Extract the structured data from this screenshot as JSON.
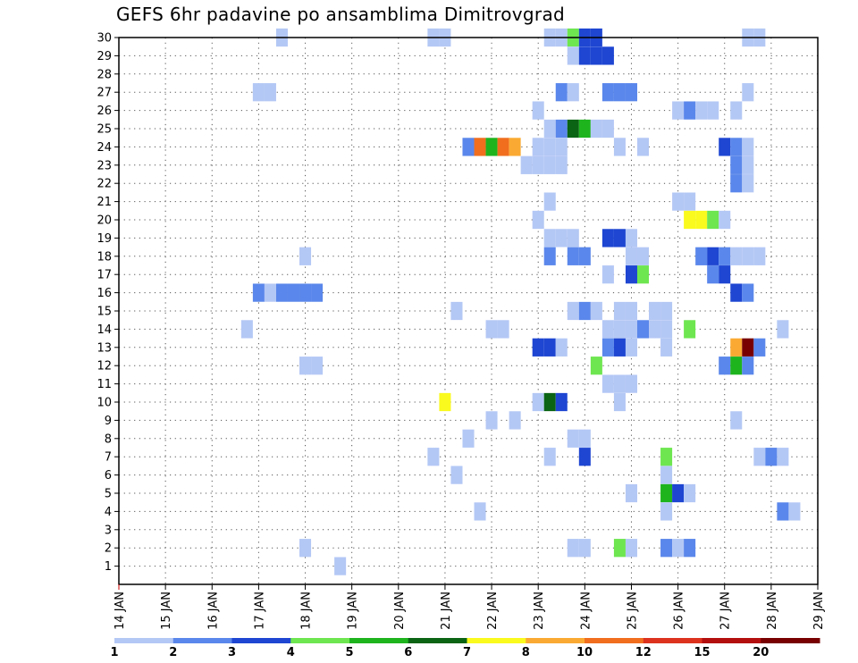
{
  "chart_data": {
    "type": "heatmap",
    "title": "GEFS 6hr padavine po ansamblima Dimitrovgrad",
    "xlabel": "",
    "ylabel": "",
    "x_tick_labels": [
      "14 JAN",
      "15 JAN",
      "16 JAN",
      "17 JAN",
      "18 JAN",
      "19 JAN",
      "20 JAN",
      "21 JAN",
      "22 JAN",
      "23 JAN",
      "24 JAN",
      "25 JAN",
      "26 JAN",
      "27 JAN",
      "28 JAN",
      "29 JAN"
    ],
    "xlim": [
      0,
      60
    ],
    "ylim": [
      0,
      30
    ],
    "y_ticks": [
      1,
      2,
      3,
      4,
      5,
      6,
      7,
      8,
      9,
      10,
      11,
      12,
      13,
      14,
      15,
      16,
      17,
      18,
      19,
      20,
      21,
      22,
      23,
      24,
      25,
      26,
      27,
      28,
      29,
      30
    ],
    "grid": true,
    "legend": {
      "placement": "bottom",
      "labels": [
        "1",
        "2",
        "3",
        "4",
        "5",
        "6",
        "7",
        "8",
        "10",
        "12",
        "15",
        "20"
      ],
      "colors": [
        "#b4c8f5",
        "#5a87eb",
        "#1e46d2",
        "#6ee650",
        "#1eb41e",
        "#0a6414",
        "#fafa1e",
        "#faaa32",
        "#f06e1e",
        "#dc321e",
        "#b40f0f",
        "#780000"
      ]
    },
    "cells": [
      {
        "member": 30,
        "step": 14,
        "level": 1
      },
      {
        "member": 30,
        "step": 27,
        "level": 1
      },
      {
        "member": 30,
        "step": 28,
        "level": 1
      },
      {
        "member": 30,
        "step": 37,
        "level": 1
      },
      {
        "member": 30,
        "step": 38,
        "level": 1
      },
      {
        "member": 30,
        "step": 39,
        "level": 4
      },
      {
        "member": 30,
        "step": 40,
        "level": 3
      },
      {
        "member": 30,
        "step": 41,
        "level": 3
      },
      {
        "member": 30,
        "step": 54,
        "level": 1
      },
      {
        "member": 30,
        "step": 55,
        "level": 1
      },
      {
        "member": 29,
        "step": 39,
        "level": 1
      },
      {
        "member": 29,
        "step": 40,
        "level": 3
      },
      {
        "member": 29,
        "step": 41,
        "level": 3
      },
      {
        "member": 29,
        "step": 42,
        "level": 3
      },
      {
        "member": 27,
        "step": 12,
        "level": 1
      },
      {
        "member": 27,
        "step": 13,
        "level": 1
      },
      {
        "member": 27,
        "step": 38,
        "level": 2
      },
      {
        "member": 27,
        "step": 39,
        "level": 1
      },
      {
        "member": 27,
        "step": 42,
        "level": 2
      },
      {
        "member": 27,
        "step": 43,
        "level": 2
      },
      {
        "member": 27,
        "step": 44,
        "level": 2
      },
      {
        "member": 27,
        "step": 54,
        "level": 1
      },
      {
        "member": 26,
        "step": 36,
        "level": 1
      },
      {
        "member": 26,
        "step": 48,
        "level": 1
      },
      {
        "member": 26,
        "step": 49,
        "level": 2
      },
      {
        "member": 26,
        "step": 50,
        "level": 1
      },
      {
        "member": 26,
        "step": 51,
        "level": 1
      },
      {
        "member": 26,
        "step": 53,
        "level": 1
      },
      {
        "member": 25,
        "step": 37,
        "level": 1
      },
      {
        "member": 25,
        "step": 38,
        "level": 2
      },
      {
        "member": 25,
        "step": 39,
        "level": 6
      },
      {
        "member": 25,
        "step": 40,
        "level": 5
      },
      {
        "member": 25,
        "step": 41,
        "level": 1
      },
      {
        "member": 25,
        "step": 42,
        "level": 1
      },
      {
        "member": 24,
        "step": 30,
        "level": 2
      },
      {
        "member": 24,
        "step": 31,
        "level": 10
      },
      {
        "member": 24,
        "step": 32,
        "level": 5
      },
      {
        "member": 24,
        "step": 33,
        "level": 10
      },
      {
        "member": 24,
        "step": 34,
        "level": 8
      },
      {
        "member": 24,
        "step": 36,
        "level": 1
      },
      {
        "member": 24,
        "step": 37,
        "level": 1
      },
      {
        "member": 24,
        "step": 38,
        "level": 1
      },
      {
        "member": 24,
        "step": 43,
        "level": 1
      },
      {
        "member": 24,
        "step": 45,
        "level": 1
      },
      {
        "member": 24,
        "step": 52,
        "level": 3
      },
      {
        "member": 24,
        "step": 53,
        "level": 2
      },
      {
        "member": 24,
        "step": 54,
        "level": 1
      },
      {
        "member": 23,
        "step": 35,
        "level": 1
      },
      {
        "member": 23,
        "step": 36,
        "level": 1
      },
      {
        "member": 23,
        "step": 37,
        "level": 1
      },
      {
        "member": 23,
        "step": 38,
        "level": 1
      },
      {
        "member": 23,
        "step": 53,
        "level": 2
      },
      {
        "member": 23,
        "step": 54,
        "level": 1
      },
      {
        "member": 22,
        "step": 53,
        "level": 2
      },
      {
        "member": 22,
        "step": 54,
        "level": 1
      },
      {
        "member": 21,
        "step": 37,
        "level": 1
      },
      {
        "member": 21,
        "step": 48,
        "level": 1
      },
      {
        "member": 21,
        "step": 49,
        "level": 1
      },
      {
        "member": 20,
        "step": 36,
        "level": 1
      },
      {
        "member": 20,
        "step": 49,
        "level": 7
      },
      {
        "member": 20,
        "step": 50,
        "level": 7
      },
      {
        "member": 20,
        "step": 51,
        "level": 4
      },
      {
        "member": 20,
        "step": 52,
        "level": 1
      },
      {
        "member": 19,
        "step": 37,
        "level": 1
      },
      {
        "member": 19,
        "step": 38,
        "level": 1
      },
      {
        "member": 19,
        "step": 39,
        "level": 1
      },
      {
        "member": 19,
        "step": 42,
        "level": 3
      },
      {
        "member": 19,
        "step": 43,
        "level": 3
      },
      {
        "member": 19,
        "step": 44,
        "level": 1
      },
      {
        "member": 18,
        "step": 16,
        "level": 1
      },
      {
        "member": 18,
        "step": 37,
        "level": 2
      },
      {
        "member": 18,
        "step": 39,
        "level": 2
      },
      {
        "member": 18,
        "step": 40,
        "level": 2
      },
      {
        "member": 18,
        "step": 44,
        "level": 1
      },
      {
        "member": 18,
        "step": 45,
        "level": 1
      },
      {
        "member": 18,
        "step": 50,
        "level": 2
      },
      {
        "member": 18,
        "step": 51,
        "level": 3
      },
      {
        "member": 18,
        "step": 52,
        "level": 2
      },
      {
        "member": 18,
        "step": 53,
        "level": 1
      },
      {
        "member": 18,
        "step": 54,
        "level": 1
      },
      {
        "member": 18,
        "step": 55,
        "level": 1
      },
      {
        "member": 17,
        "step": 42,
        "level": 1
      },
      {
        "member": 17,
        "step": 44,
        "level": 3
      },
      {
        "member": 17,
        "step": 45,
        "level": 4
      },
      {
        "member": 17,
        "step": 51,
        "level": 2
      },
      {
        "member": 17,
        "step": 52,
        "level": 3
      },
      {
        "member": 16,
        "step": 12,
        "level": 2
      },
      {
        "member": 16,
        "step": 13,
        "level": 1
      },
      {
        "member": 16,
        "step": 14,
        "level": 2
      },
      {
        "member": 16,
        "step": 15,
        "level": 2
      },
      {
        "member": 16,
        "step": 16,
        "level": 2
      },
      {
        "member": 16,
        "step": 17,
        "level": 2
      },
      {
        "member": 16,
        "step": 53,
        "level": 3
      },
      {
        "member": 16,
        "step": 54,
        "level": 2
      },
      {
        "member": 15,
        "step": 29,
        "level": 1
      },
      {
        "member": 15,
        "step": 39,
        "level": 1
      },
      {
        "member": 15,
        "step": 40,
        "level": 2
      },
      {
        "member": 15,
        "step": 41,
        "level": 1
      },
      {
        "member": 15,
        "step": 43,
        "level": 1
      },
      {
        "member": 15,
        "step": 44,
        "level": 1
      },
      {
        "member": 15,
        "step": 46,
        "level": 1
      },
      {
        "member": 15,
        "step": 47,
        "level": 1
      },
      {
        "member": 14,
        "step": 11,
        "level": 1
      },
      {
        "member": 14,
        "step": 32,
        "level": 1
      },
      {
        "member": 14,
        "step": 33,
        "level": 1
      },
      {
        "member": 14,
        "step": 42,
        "level": 1
      },
      {
        "member": 14,
        "step": 43,
        "level": 1
      },
      {
        "member": 14,
        "step": 44,
        "level": 1
      },
      {
        "member": 14,
        "step": 45,
        "level": 2
      },
      {
        "member": 14,
        "step": 46,
        "level": 1
      },
      {
        "member": 14,
        "step": 47,
        "level": 1
      },
      {
        "member": 14,
        "step": 49,
        "level": 4
      },
      {
        "member": 14,
        "step": 57,
        "level": 1
      },
      {
        "member": 13,
        "step": 36,
        "level": 3
      },
      {
        "member": 13,
        "step": 37,
        "level": 3
      },
      {
        "member": 13,
        "step": 38,
        "level": 1
      },
      {
        "member": 13,
        "step": 42,
        "level": 2
      },
      {
        "member": 13,
        "step": 43,
        "level": 3
      },
      {
        "member": 13,
        "step": 44,
        "level": 1
      },
      {
        "member": 13,
        "step": 47,
        "level": 1
      },
      {
        "member": 13,
        "step": 53,
        "level": 8
      },
      {
        "member": 13,
        "step": 54,
        "level": 20
      },
      {
        "member": 13,
        "step": 55,
        "level": 2
      },
      {
        "member": 12,
        "step": 16,
        "level": 1
      },
      {
        "member": 12,
        "step": 17,
        "level": 1
      },
      {
        "member": 12,
        "step": 41,
        "level": 4
      },
      {
        "member": 12,
        "step": 52,
        "level": 2
      },
      {
        "member": 12,
        "step": 53,
        "level": 5
      },
      {
        "member": 12,
        "step": 54,
        "level": 2
      },
      {
        "member": 11,
        "step": 42,
        "level": 1
      },
      {
        "member": 11,
        "step": 43,
        "level": 1
      },
      {
        "member": 11,
        "step": 44,
        "level": 1
      },
      {
        "member": 10,
        "step": 28,
        "level": 7
      },
      {
        "member": 10,
        "step": 36,
        "level": 1
      },
      {
        "member": 10,
        "step": 37,
        "level": 6
      },
      {
        "member": 10,
        "step": 38,
        "level": 3
      },
      {
        "member": 10,
        "step": 43,
        "level": 1
      },
      {
        "member": 9,
        "step": 32,
        "level": 1
      },
      {
        "member": 9,
        "step": 34,
        "level": 1
      },
      {
        "member": 9,
        "step": 53,
        "level": 1
      },
      {
        "member": 8,
        "step": 30,
        "level": 1
      },
      {
        "member": 8,
        "step": 39,
        "level": 1
      },
      {
        "member": 8,
        "step": 40,
        "level": 1
      },
      {
        "member": 7,
        "step": 27,
        "level": 1
      },
      {
        "member": 7,
        "step": 37,
        "level": 1
      },
      {
        "member": 7,
        "step": 40,
        "level": 3
      },
      {
        "member": 7,
        "step": 47,
        "level": 4
      },
      {
        "member": 7,
        "step": 55,
        "level": 1
      },
      {
        "member": 7,
        "step": 56,
        "level": 2
      },
      {
        "member": 7,
        "step": 57,
        "level": 1
      },
      {
        "member": 6,
        "step": 29,
        "level": 1
      },
      {
        "member": 6,
        "step": 47,
        "level": 1
      },
      {
        "member": 5,
        "step": 44,
        "level": 1
      },
      {
        "member": 5,
        "step": 47,
        "level": 5
      },
      {
        "member": 5,
        "step": 48,
        "level": 3
      },
      {
        "member": 5,
        "step": 49,
        "level": 1
      },
      {
        "member": 4,
        "step": 31,
        "level": 1
      },
      {
        "member": 4,
        "step": 47,
        "level": 1
      },
      {
        "member": 4,
        "step": 57,
        "level": 2
      },
      {
        "member": 4,
        "step": 58,
        "level": 1
      },
      {
        "member": 2,
        "step": 16,
        "level": 1
      },
      {
        "member": 2,
        "step": 39,
        "level": 1
      },
      {
        "member": 2,
        "step": 40,
        "level": 1
      },
      {
        "member": 2,
        "step": 43,
        "level": 4
      },
      {
        "member": 2,
        "step": 44,
        "level": 1
      },
      {
        "member": 2,
        "step": 47,
        "level": 2
      },
      {
        "member": 2,
        "step": 48,
        "level": 1
      },
      {
        "member": 2,
        "step": 49,
        "level": 2
      },
      {
        "member": 1,
        "step": 19,
        "level": 1
      }
    ]
  }
}
